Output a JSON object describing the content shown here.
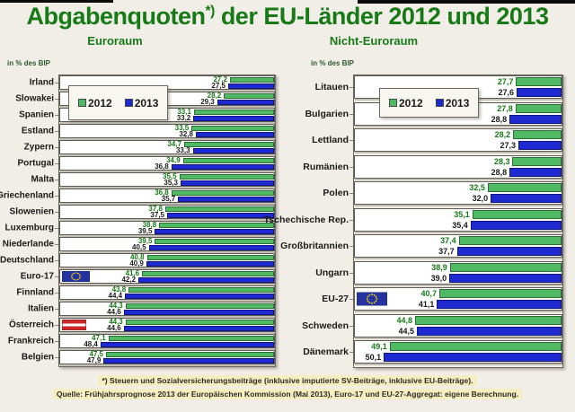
{
  "title": {
    "word": "Abgabenquoten",
    "footnote_marker": "*)",
    "rest": " der EU-Länder 2012 und 2013"
  },
  "axis_label": "in % des BIP",
  "legend": {
    "items": [
      {
        "label": "2012",
        "color": "#4fb963"
      },
      {
        "label": "2013",
        "color": "#1e2ad0"
      }
    ]
  },
  "footnote": "*) Steuern und Sozialversicherungsbeiträge (inklusive imputierte SV-Beiträge, inklusive EU-Beiträge).",
  "source": "Quelle: Frühjahrsprognose 2013 der Europäischen Kommission (Mai 2013), Euro-17 und EU-27-Aggregat: eigene Berechnung.",
  "colors": {
    "title_green": "#177a17",
    "bar_2012_green": "#4fb963",
    "bar_2013_blue": "#1e2ad0",
    "value_2012_text": "#177a17",
    "value_2013_text": "#1a1a1a",
    "background": "#f1eee7",
    "row_background": "#ffffff",
    "highlight_yellow": "#f4eec0",
    "eu_flag_blue": "#24339f",
    "eu_flag_star_yellow": "#ffd400",
    "austria_flag_red": "#cf2526"
  },
  "chart_data": [
    {
      "type": "bar",
      "title": "Euroraum",
      "orientation": "horizontal",
      "anchor": "right",
      "unit": "% des BIP",
      "xlim": [
        20,
        55
      ],
      "grid": false,
      "legend_position": "top-left-overlay",
      "categories": [
        "Irland",
        "Slowakei",
        "Spanien",
        "Estland",
        "Zypern",
        "Portugal",
        "Malta",
        "Griechenland",
        "Slowenien",
        "Luxemburg",
        "Niederlande",
        "Deutschland",
        "Euro-17",
        "Finnland",
        "Italien",
        "Österreich",
        "Frankreich",
        "Belgien"
      ],
      "series": [
        {
          "name": "2012",
          "values": [
            27.2,
            28.2,
            33.1,
            33.5,
            34.7,
            34.9,
            35.5,
            36.8,
            37.8,
            38.8,
            39.5,
            40.8,
            41.6,
            43.8,
            44.3,
            44.3,
            47.1,
            47.5
          ]
        },
        {
          "name": "2013",
          "values": [
            27.5,
            29.3,
            33.2,
            32.8,
            33.3,
            36.8,
            35.3,
            35.7,
            37.5,
            39.5,
            40.5,
            40.9,
            42.2,
            44.4,
            44.6,
            44.6,
            48.4,
            47.9
          ]
        }
      ],
      "flags": {
        "Euro-17": "eu",
        "Österreich": "austria"
      },
      "number_format": "de-comma-1-decimal"
    },
    {
      "type": "bar",
      "title": "Nicht-Euroraum",
      "orientation": "horizontal",
      "anchor": "right",
      "unit": "% des BIP",
      "xlim": [
        20,
        55
      ],
      "grid": false,
      "legend_position": "top-left-overlay",
      "categories": [
        "Litauen",
        "Bulgarien",
        "Lettland",
        "Rumänien",
        "Polen",
        "Tschechische Rep.",
        "Großbritannien",
        "Ungarn",
        "EU-27",
        "Schweden",
        "Dänemark"
      ],
      "series": [
        {
          "name": "2012",
          "values": [
            27.7,
            27.8,
            28.2,
            28.3,
            32.5,
            35.1,
            37.4,
            38.9,
            40.7,
            44.8,
            49.1
          ]
        },
        {
          "name": "2013",
          "values": [
            27.6,
            28.8,
            27.3,
            28.8,
            32.0,
            35.4,
            37.7,
            39.0,
            41.1,
            44.5,
            50.1
          ]
        }
      ],
      "flags": {
        "EU-27": "eu"
      },
      "number_format": "de-comma-1-decimal"
    }
  ]
}
